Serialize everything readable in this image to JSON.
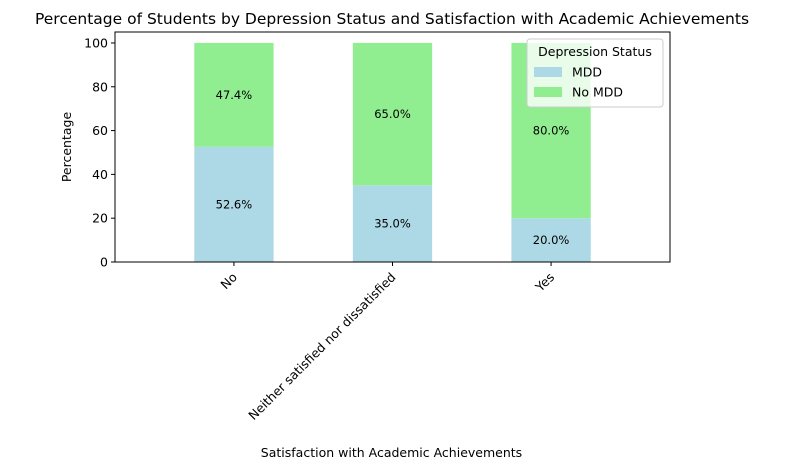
{
  "chart_data": {
    "type": "bar",
    "stacked": true,
    "title": "Percentage of Students by Depression Status and Satisfaction with Academic Achievements",
    "xlabel": "Satisfaction with Academic Achievements",
    "ylabel": "Percentage",
    "categories": [
      "No",
      "Neither satisfied nor dissatisfied",
      "Yes"
    ],
    "series": [
      {
        "name": "MDD",
        "color": "#add8e6",
        "values": [
          52.6,
          35.0,
          20.0
        ],
        "labels": [
          "52.6%",
          "35.0%",
          "20.0%"
        ]
      },
      {
        "name": "No MDD",
        "color": "#90ee90",
        "values": [
          47.4,
          65.0,
          80.0
        ],
        "labels": [
          "47.4%",
          "65.0%",
          "80.0%"
        ]
      }
    ],
    "ylim": [
      0,
      105
    ],
    "yticks": [
      0,
      20,
      40,
      60,
      80,
      100
    ],
    "legend": {
      "title": "Depression Status",
      "position": "top-right"
    },
    "grid": false
  }
}
